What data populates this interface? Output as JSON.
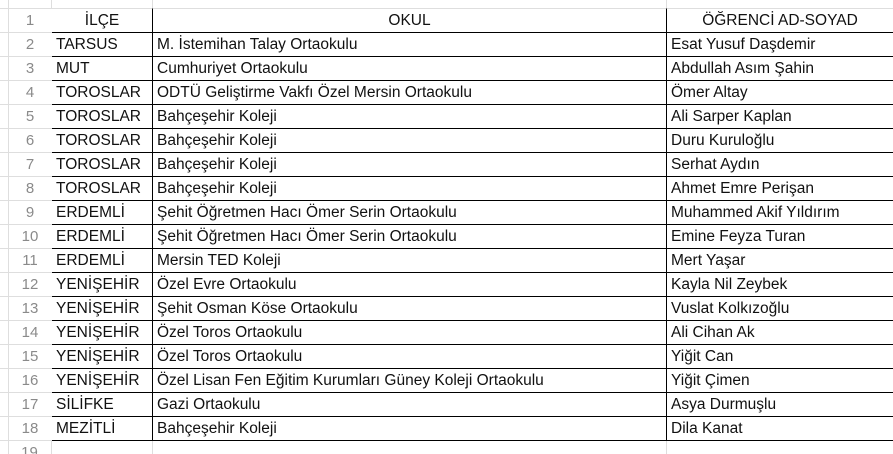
{
  "sheet": {
    "top_left_row_number": "1",
    "header": {
      "ilce": "İLÇE",
      "okul": "OKUL",
      "ogrenci": "ÖĞRENCİ AD-SOYAD"
    },
    "rows": [
      [
        "2",
        "TARSUS",
        "M. İstemihan Talay Ortaokulu",
        "Esat Yusuf Daşdemir"
      ],
      [
        "3",
        "MUT",
        "Cumhuriyet Ortaokulu",
        "Abdullah Asım Şahin"
      ],
      [
        "4",
        "TOROSLAR",
        "ODTÜ Geliştirme Vakfı Özel Mersin Ortaokulu",
        "Ömer Altay"
      ],
      [
        "5",
        "TOROSLAR",
        "Bahçeşehir Koleji",
        "Ali Sarper Kaplan"
      ],
      [
        "6",
        "TOROSLAR",
        "Bahçeşehir Koleji",
        "Duru Kuruloğlu"
      ],
      [
        "7",
        "TOROSLAR",
        "Bahçeşehir Koleji",
        "Serhat Aydın"
      ],
      [
        "8",
        "TOROSLAR",
        "Bahçeşehir Koleji",
        "Ahmet Emre Perişan"
      ],
      [
        "9",
        "ERDEMLİ",
        "Şehit Öğretmen Hacı Ömer Serin Ortaokulu",
        "Muhammed Akif Yıldırım"
      ],
      [
        "10",
        "ERDEMLİ",
        "Şehit Öğretmen Hacı Ömer Serin Ortaokulu",
        "Emine Feyza Turan"
      ],
      [
        "11",
        "ERDEMLİ",
        "Mersin TED Koleji",
        "Mert Yaşar"
      ],
      [
        "12",
        "YENİŞEHİR",
        "Özel Evre Ortaokulu",
        "Kayla Nil Zeybek"
      ],
      [
        "13",
        "YENİŞEHİR",
        "Şehit Osman Köse Ortaokulu",
        "Vuslat Kolkızoğlu"
      ],
      [
        "14",
        "YENİŞEHİR",
        "Özel Toros Ortaokulu",
        "Ali Cihan Ak"
      ],
      [
        "15",
        "YENİŞEHİR",
        "Özel Toros Ortaokulu",
        "Yiğit Can"
      ],
      [
        "16",
        "YENİŞEHİR",
        "Özel Lisan Fen Eğitim Kurumları Güney Koleji Ortaokulu",
        "Yiğit Çimen"
      ],
      [
        "17",
        "SİLİFKE",
        "Gazi Ortaokulu",
        "Asya Durmuşlu"
      ],
      [
        "18",
        "MEZİTLİ",
        "Bahçeşehir Koleji",
        "Dila Kanat"
      ]
    ],
    "partial_row_number": "19",
    "colors": {
      "background": "#ffffff",
      "cell_border": "#000000",
      "gridline": "#dedede",
      "row_number_text": "#8a8a8a",
      "cell_text": "#111111"
    }
  }
}
